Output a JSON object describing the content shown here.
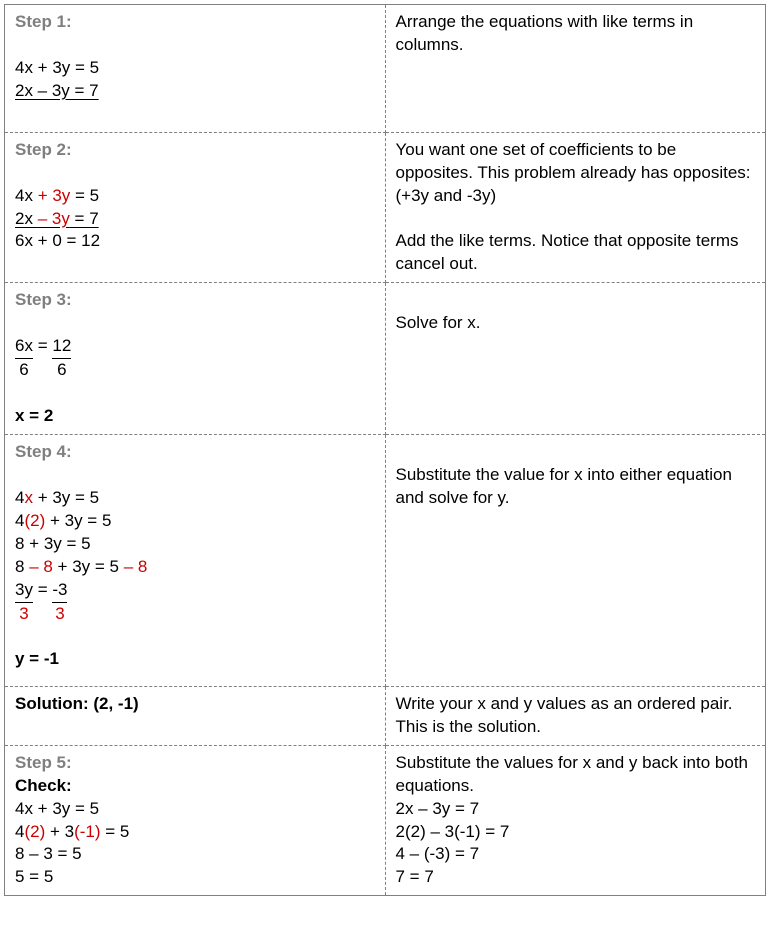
{
  "colors": {
    "border": "#808080",
    "step_label": "#7f7f7f",
    "text": "#000000",
    "highlight": "#cc0000",
    "background": "#ffffff"
  },
  "font": {
    "family": "Century Gothic",
    "size_pt": 13
  },
  "rows": [
    {
      "label": "Step 1:",
      "desc": "Arrange the equations with like terms in columns."
    },
    {
      "label": "Step 2:",
      "desc_a": "You want one set of coefficients to be opposites. This problem already has opposites: (+3y and -3y)",
      "desc_b": "Add the like terms.  Notice that opposite terms cancel out."
    },
    {
      "label": "Step 3:",
      "desc": "Solve for x.",
      "frac_a_num": "6x",
      "frac_a_den": "6",
      "frac_b_num": "12",
      "frac_b_den": "6",
      "eq_result": "x = 2"
    },
    {
      "label": "Step 4:",
      "desc": "Substitute the value for x into either equation and solve for y.",
      "l1_a": "4",
      "l1_x": "x",
      "l1_b": " + 3y = 5",
      "l2_a": "4",
      "l2_p": "(2)",
      "l2_b": " + 3y = 5",
      "l3": "8 + 3y = 5",
      "l4_a": "8 ",
      "l4_m1": "– 8",
      "l4_b": " + 3y = 5 ",
      "l4_m2": "– 8",
      "frac_a_num": "3y",
      "frac_a_den": "3",
      "frac_b_num": "-3",
      "frac_b_den": "3",
      "eq_result": "y = -1"
    },
    {
      "sol_label": "Solution: ",
      "sol_val": "(2, -1)",
      "desc": "Write your x and y values as an ordered pair.  This is the solution."
    },
    {
      "label": "Step 5:",
      "check": "Check:",
      "l1": "4x + 3y = 5",
      "l2_a": "4",
      "l2_p1": "(2)",
      "l2_b": " + 3",
      "l2_p2": "(-1)",
      "l2_c": " = 5",
      "l3": "8 – 3 = 5",
      "l4": "5 = 5",
      "r_desc": "Substitute the values for x and y back into both equations.",
      "r1": "2x – 3y = 7",
      "r2": "2(2) – 3(-1) = 7",
      "r3": "4 – (-3) = 7",
      "r4": "7 = 7"
    }
  ],
  "step1_eq1": "4x + 3y = 5",
  "step1_eq2": "2x – 3y = 7",
  "step2": {
    "l1_a": "4x ",
    "l1_h": "+ 3y",
    "l1_b": " = 5",
    "l2_a": "2x ",
    "l2_h": "– 3y",
    "l2_b": " = 7",
    "l3": "6x + 0 = 12"
  }
}
